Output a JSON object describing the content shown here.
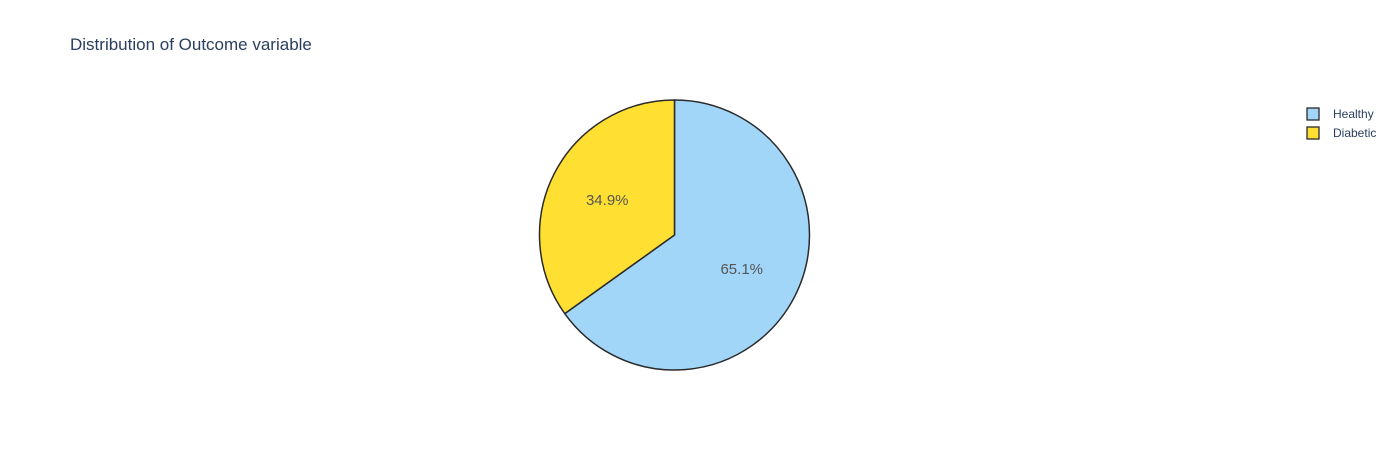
{
  "chart_data": {
    "type": "pie",
    "title": "Distribution of Outcome variable",
    "categories": [
      "Healthy",
      "Diabetic"
    ],
    "values": [
      65.1,
      34.9
    ],
    "labels": [
      "65.1%",
      "34.9%"
    ],
    "colors": [
      "#a2d6f9",
      "#ffdf32"
    ],
    "slice_outline_color": "#2a2a2a",
    "start_angle_deg": 90,
    "direction": "clockwise",
    "legend": {
      "position": "top-right",
      "items": [
        {
          "label": "Healthy",
          "color": "#a2d6f9"
        },
        {
          "label": "Diabetic",
          "color": "#ffdf32"
        }
      ]
    }
  }
}
